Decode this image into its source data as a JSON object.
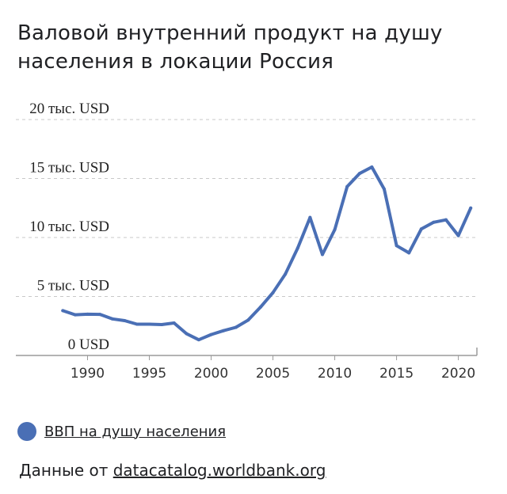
{
  "title": "Валовой внутренний продукт на душу населения в локации Россия",
  "legend": {
    "label": "ВВП на душу населения",
    "color": "#4a6fb5"
  },
  "source": {
    "prefix": "Данные от ",
    "link": "datacatalog.worldbank.org"
  },
  "chart_data": {
    "type": "line",
    "title": "Валовой внутренний продукт на душу населения в локации Россия",
    "xlabel": "",
    "ylabel": "",
    "x_ticks": [
      "1990",
      "1995",
      "2000",
      "2005",
      "2010",
      "2015",
      "2020"
    ],
    "y_ticks": [
      {
        "value": 20000,
        "label": "20 тыс. USD"
      },
      {
        "value": 15000,
        "label": "15 тыс. USD"
      },
      {
        "value": 10000,
        "label": "10 тыс. USD"
      },
      {
        "value": 5000,
        "label": "5 тыс. USD"
      },
      {
        "value": 0,
        "label": "0 USD"
      }
    ],
    "ylim": [
      0,
      20000
    ],
    "xlim": [
      1984.2,
      2021.5
    ],
    "grid": true,
    "legend_position": "bottom-left",
    "series": [
      {
        "name": "ВВП на душу населения",
        "color": "#4a6fb5",
        "x": [
          1988,
          1989,
          1990,
          1991,
          1992,
          1993,
          1994,
          1995,
          1996,
          1997,
          1998,
          1999,
          2000,
          2001,
          2002,
          2003,
          2004,
          2005,
          2006,
          2007,
          2008,
          2009,
          2010,
          2011,
          2012,
          2013,
          2014,
          2015,
          2016,
          2017,
          2018,
          2019,
          2020,
          2021
        ],
        "values": [
          3800,
          3450,
          3500,
          3480,
          3100,
          2950,
          2650,
          2650,
          2620,
          2750,
          1850,
          1330,
          1770,
          2100,
          2380,
          3000,
          4100,
          5320,
          6900,
          9100,
          11700,
          8560,
          10670,
          14310,
          15420,
          15970,
          14100,
          9310,
          8700,
          10720,
          11290,
          11500,
          10160,
          12500
        ]
      }
    ]
  }
}
